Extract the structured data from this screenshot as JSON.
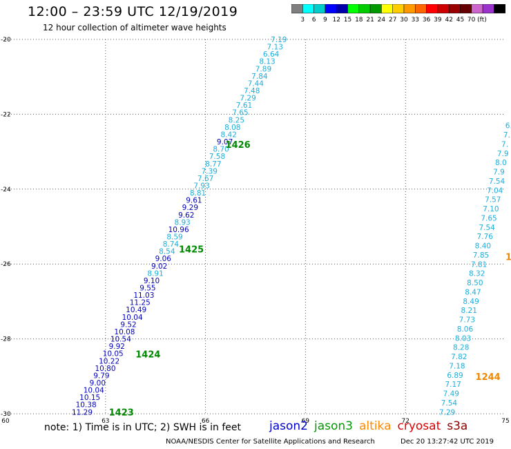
{
  "header": {
    "title": "12:00 – 23:59 UTC 12/19/2019",
    "subtitle": "12 hour collection of altimeter wave heights"
  },
  "colorbar": {
    "colors": [
      "#7f7f7f",
      "#00ffff",
      "#00cccc",
      "#0000ff",
      "#0000aa",
      "#00ff00",
      "#00cc00",
      "#009900",
      "#ffff00",
      "#ffcc00",
      "#ff9900",
      "#ff6600",
      "#ff0000",
      "#cc0000",
      "#990000",
      "#660000",
      "#cc66cc",
      "#9933cc",
      "#000000"
    ],
    "labels": [
      "3",
      "6",
      "9",
      "12",
      "15",
      "18",
      "21",
      "24",
      "27",
      "30",
      "33",
      "36",
      "39",
      "42",
      "45",
      "70 (ft)"
    ]
  },
  "chart_data": {
    "type": "scatter",
    "title": "12:00 – 23:59 UTC 12/19/2019",
    "xlim": [
      60,
      75
    ],
    "ylim": [
      -30,
      -20
    ],
    "x_ticks": [
      "60",
      "63",
      "66",
      "69",
      "72",
      "75"
    ],
    "y_ticks": [
      "-20",
      "-22",
      "-24",
      "-26",
      "-28",
      "-30"
    ],
    "grid": true,
    "track_a": {
      "start": [
        68.2,
        -20.0
      ],
      "end": [
        62.3,
        -29.95
      ],
      "values": [
        "7.19",
        "7.13",
        "6.64",
        "8.13",
        "7.89",
        "7.84",
        "7.44",
        "7.48",
        "7.29",
        "7.61",
        "7.65",
        "8.25",
        "8.08",
        "8.42",
        "9.07",
        "8.70",
        "7.58",
        "8.77",
        "7.39",
        "7.67",
        "7.93",
        "8.81",
        "9.61",
        "9.29",
        "9.62",
        "8.93",
        "10.96",
        "8.59",
        "8.74",
        "8.54",
        "9.06",
        "9.02",
        "8.91",
        "9.10",
        "9.55",
        "11.03",
        "11.25",
        "10.49",
        "10.04",
        "9.52",
        "10.08",
        "10.54",
        "9.92",
        "10.05",
        "10.22",
        "10.80",
        "9.79",
        "9.00",
        "10.04",
        "10.15",
        "10.38",
        "11.29"
      ]
    },
    "track_b": {
      "start": [
        75.1,
        -22.3
      ],
      "end": [
        73.25,
        -29.95
      ],
      "values": [
        "6.",
        "7.",
        "7.",
        "7.9",
        "8.0",
        "7.9",
        "7.54",
        "7.04",
        "7.57",
        "7.10",
        "7.65",
        "7.54",
        "7.76",
        "8.40",
        "7.85",
        "7.81",
        "8.32",
        "8.50",
        "8.47",
        "8.49",
        "8.21",
        "7.73",
        "8.06",
        "8.03",
        "8.28",
        "7.82",
        "7.18",
        "6.89",
        "7.17",
        "7.49",
        "7.54",
        "7.29"
      ]
    },
    "time_labels": [
      {
        "text": "1426",
        "x": 66.6,
        "y": -22.8,
        "color": "#008800"
      },
      {
        "text": "1425",
        "x": 65.2,
        "y": -25.6,
        "color": "#008800"
      },
      {
        "text": "1424",
        "x": 63.9,
        "y": -28.4,
        "color": "#008800"
      },
      {
        "text": "1423",
        "x": 63.1,
        "y": -29.95,
        "color": "#008800"
      },
      {
        "text": "1244",
        "x": 74.1,
        "y": -29.0,
        "color": "#ee8800"
      },
      {
        "text": "1",
        "x": 75.0,
        "y": -25.8,
        "color": "#ee8800"
      }
    ]
  },
  "footer": {
    "note": "note: 1) Time is in UTC; 2) SWH is in feet",
    "satellites": [
      {
        "name": "jason2",
        "color": "#0000cc"
      },
      {
        "name": "jason3",
        "color": "#009900"
      },
      {
        "name": "altika",
        "color": "#ff8800"
      },
      {
        "name": "cryosat",
        "color": "#dd0000"
      },
      {
        "name": "s3a",
        "color": "#880000"
      }
    ],
    "credit": "NOAA/NESDIS Center for Satellite Applications and Research",
    "timestamp": "Dec 20 13:27:42 UTC 2019"
  }
}
